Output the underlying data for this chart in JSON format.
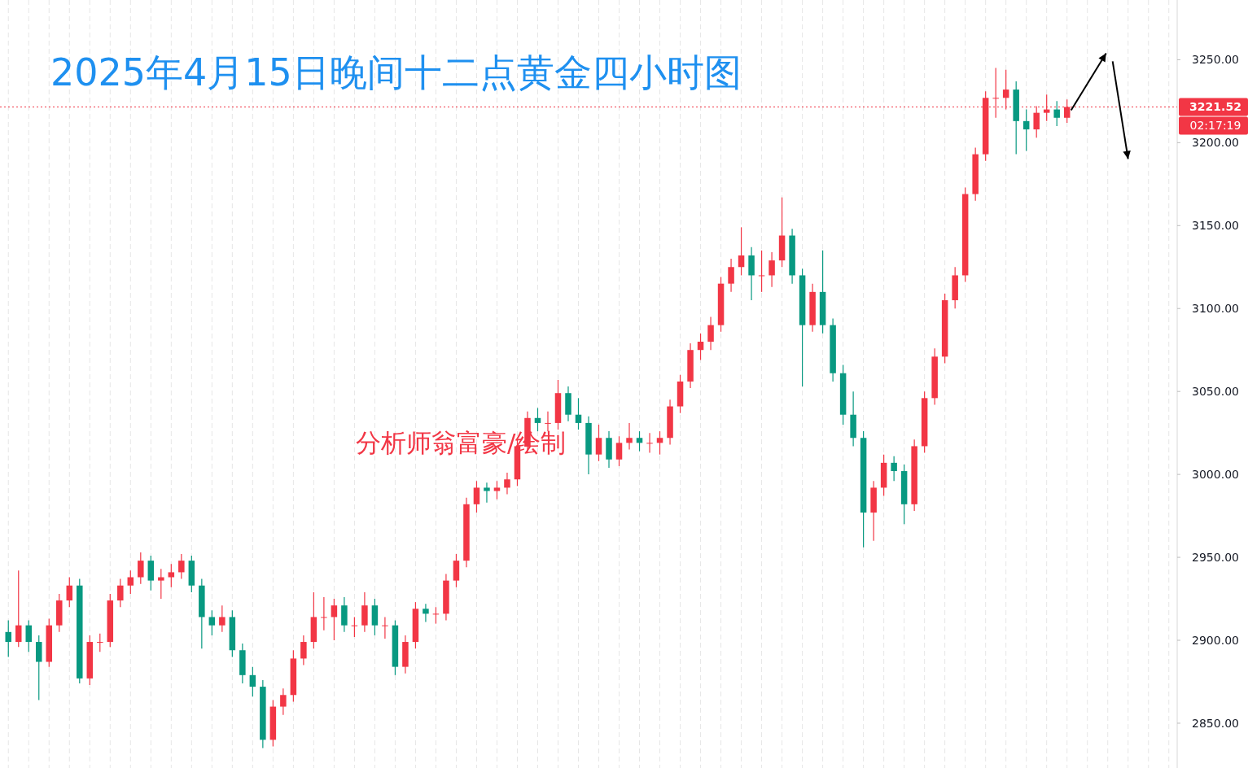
{
  "chart_data": {
    "type": "candlestick",
    "title": "2025年4月15日晚间十二点黄金四小时图",
    "annotations": [
      "分析师翁富豪/绘制",
      "02:17:19"
    ],
    "ylim": [
      2823,
      3286
    ],
    "yticks": [
      {
        "value": 2850,
        "label": "2850.00"
      },
      {
        "value": 2900,
        "label": "2900.00"
      },
      {
        "value": 2950,
        "label": "2950.00"
      },
      {
        "value": 3000,
        "label": "3000.00"
      },
      {
        "value": 3050,
        "label": "3050.00"
      },
      {
        "value": 3100,
        "label": "3100.00"
      },
      {
        "value": 3150,
        "label": "3150.00"
      },
      {
        "value": 3200,
        "label": "3200.00"
      },
      {
        "value": 3250,
        "label": "3250.00"
      }
    ],
    "grid": "x",
    "ref_lines": [
      {
        "axis": "y",
        "value": 3221.52,
        "label": "3221.52",
        "color": "#f23645",
        "line_style": "dotted"
      }
    ],
    "categories": [
      null,
      null,
      null,
      null,
      null,
      null,
      null,
      null,
      null,
      null,
      null,
      null,
      null,
      null,
      null,
      null,
      null,
      null,
      null,
      null,
      null,
      null,
      null,
      null,
      null,
      null,
      null,
      null,
      null,
      null,
      null,
      null,
      null,
      null,
      null,
      null,
      null,
      null,
      null,
      null,
      null,
      null,
      null,
      null,
      null,
      null,
      null,
      null,
      null,
      null,
      null,
      null,
      null,
      null,
      null,
      null,
      null,
      null,
      null,
      null,
      null,
      null,
      null,
      null,
      null,
      null,
      null,
      null,
      null,
      null,
      null,
      null,
      null,
      null,
      null,
      null,
      null,
      null,
      null,
      null,
      null,
      null,
      null,
      null,
      null,
      null,
      null,
      null,
      null,
      null,
      null,
      null,
      null,
      null,
      null,
      null,
      null,
      null,
      null,
      null,
      null,
      null,
      null,
      null,
      null,
      null,
      null,
      null,
      null,
      null,
      null,
      null,
      null,
      null,
      null
    ],
    "ohlc": [
      [
        2905,
        2912,
        2890,
        2899
      ],
      [
        2899,
        2942,
        2896,
        2909
      ],
      [
        2909,
        2912,
        2893,
        2899
      ],
      [
        2899,
        2903,
        2864,
        2887
      ],
      [
        2887,
        2913,
        2884,
        2909
      ],
      [
        2909,
        2928,
        2905,
        2924
      ],
      [
        2924,
        2938,
        2920,
        2933
      ],
      [
        2933,
        2937,
        2874,
        2877
      ],
      [
        2877,
        2903,
        2873,
        2899
      ],
      [
        2899,
        2904,
        2893,
        2899
      ],
      [
        2899,
        2928,
        2896,
        2924
      ],
      [
        2924,
        2937,
        2920,
        2933
      ],
      [
        2933,
        2942,
        2928,
        2938
      ],
      [
        2938,
        2953,
        2934,
        2948
      ],
      [
        2948,
        2951,
        2930,
        2936
      ],
      [
        2936,
        2943,
        2925,
        2938
      ],
      [
        2938,
        2946,
        2932,
        2941
      ],
      [
        2941,
        2952,
        2937,
        2948
      ],
      [
        2948,
        2951,
        2929,
        2933
      ],
      [
        2933,
        2937,
        2895,
        2914
      ],
      [
        2914,
        2918,
        2903,
        2909
      ],
      [
        2909,
        2921,
        2905,
        2914
      ],
      [
        2914,
        2918,
        2890,
        2894
      ],
      [
        2894,
        2898,
        2874,
        2879
      ],
      [
        2879,
        2884,
        2866,
        2872
      ],
      [
        2872,
        2876,
        2835,
        2840
      ],
      [
        2840,
        2864,
        2836,
        2860
      ],
      [
        2860,
        2871,
        2855,
        2867
      ],
      [
        2867,
        2894,
        2863,
        2889
      ],
      [
        2889,
        2903,
        2885,
        2899
      ],
      [
        2899,
        2929,
        2895,
        2914
      ],
      [
        2914,
        2926,
        2906,
        2914
      ],
      [
        2914,
        2925,
        2900,
        2921
      ],
      [
        2921,
        2926,
        2905,
        2909
      ],
      [
        2909,
        2914,
        2902,
        2909
      ],
      [
        2909,
        2929,
        2905,
        2921
      ],
      [
        2921,
        2925,
        2903,
        2909
      ],
      [
        2909,
        2914,
        2901,
        2909
      ],
      [
        2909,
        2912,
        2879,
        2884
      ],
      [
        2884,
        2903,
        2880,
        2899
      ],
      [
        2899,
        2923,
        2895,
        2919
      ],
      [
        2919,
        2922,
        2911,
        2916
      ],
      [
        2916,
        2920,
        2910,
        2916
      ],
      [
        2916,
        2940,
        2912,
        2936
      ],
      [
        2936,
        2952,
        2932,
        2948
      ],
      [
        2948,
        2986,
        2944,
        2982
      ],
      [
        2982,
        2996,
        2977,
        2992
      ],
      [
        2992,
        2995,
        2983,
        2990
      ],
      [
        2990,
        2996,
        2985,
        2992
      ],
      [
        2992,
        3001,
        2988,
        2997
      ],
      [
        2997,
        3021,
        2993,
        3017
      ],
      [
        3017,
        3038,
        3013,
        3034
      ],
      [
        3034,
        3040,
        3026,
        3031
      ],
      [
        3031,
        3038,
        3026,
        3031
      ],
      [
        3031,
        3057,
        3027,
        3049
      ],
      [
        3049,
        3053,
        3032,
        3036
      ],
      [
        3036,
        3046,
        3027,
        3031
      ],
      [
        3031,
        3035,
        3000,
        3012
      ],
      [
        3012,
        3030,
        3008,
        3022
      ],
      [
        3022,
        3026,
        3004,
        3009
      ],
      [
        3009,
        3023,
        3005,
        3019
      ],
      [
        3019,
        3031,
        3015,
        3022
      ],
      [
        3022,
        3026,
        3014,
        3019
      ],
      [
        3019,
        3025,
        3013,
        3019
      ],
      [
        3019,
        3026,
        3012,
        3022
      ],
      [
        3022,
        3045,
        3018,
        3041
      ],
      [
        3041,
        3060,
        3037,
        3056
      ],
      [
        3056,
        3079,
        3052,
        3075
      ],
      [
        3075,
        3085,
        3069,
        3080
      ],
      [
        3080,
        3095,
        3075,
        3090
      ],
      [
        3090,
        3119,
        3086,
        3115
      ],
      [
        3115,
        3130,
        3110,
        3125
      ],
      [
        3125,
        3149,
        3120,
        3132
      ],
      [
        3132,
        3137,
        3105,
        3120
      ],
      [
        3120,
        3135,
        3110,
        3120
      ],
      [
        3120,
        3134,
        3113,
        3129
      ],
      [
        3129,
        3167,
        3125,
        3144
      ],
      [
        3144,
        3148,
        3115,
        3120
      ],
      [
        3120,
        3124,
        3053,
        3090
      ],
      [
        3090,
        3115,
        3086,
        3110
      ],
      [
        3110,
        3135,
        3085,
        3090
      ],
      [
        3090,
        3094,
        3056,
        3061
      ],
      [
        3061,
        3066,
        3030,
        3036
      ],
      [
        3036,
        3050,
        3017,
        3022
      ],
      [
        3022,
        3026,
        2956,
        2977
      ],
      [
        2977,
        2996,
        2960,
        2992
      ],
      [
        2992,
        3012,
        2987,
        3007
      ],
      [
        3007,
        3011,
        2996,
        3002
      ],
      [
        3002,
        3006,
        2970,
        2982
      ],
      [
        2982,
        3021,
        2978,
        3017
      ],
      [
        3017,
        3050,
        3013,
        3046
      ],
      [
        3046,
        3076,
        3042,
        3071
      ],
      [
        3071,
        3109,
        3067,
        3105
      ],
      [
        3105,
        3125,
        3100,
        3120
      ],
      [
        3120,
        3173,
        3116,
        3169
      ],
      [
        3169,
        3197,
        3165,
        3193
      ],
      [
        3193,
        3231,
        3189,
        3227
      ],
      [
        3227,
        3245,
        3215,
        3227
      ],
      [
        3227,
        3244,
        3220,
        3232
      ],
      [
        3232,
        3237,
        3193,
        3213
      ],
      [
        3213,
        3220,
        3195,
        3208
      ],
      [
        3208,
        3222,
        3203,
        3218
      ],
      [
        3218,
        3229,
        3213,
        3220
      ],
      [
        3220,
        3225,
        3210,
        3215
      ],
      [
        3215,
        3226,
        3212,
        3221.52
      ],
      null,
      null,
      null,
      null,
      null,
      null,
      null,
      null,
      null,
      null
    ]
  }
}
